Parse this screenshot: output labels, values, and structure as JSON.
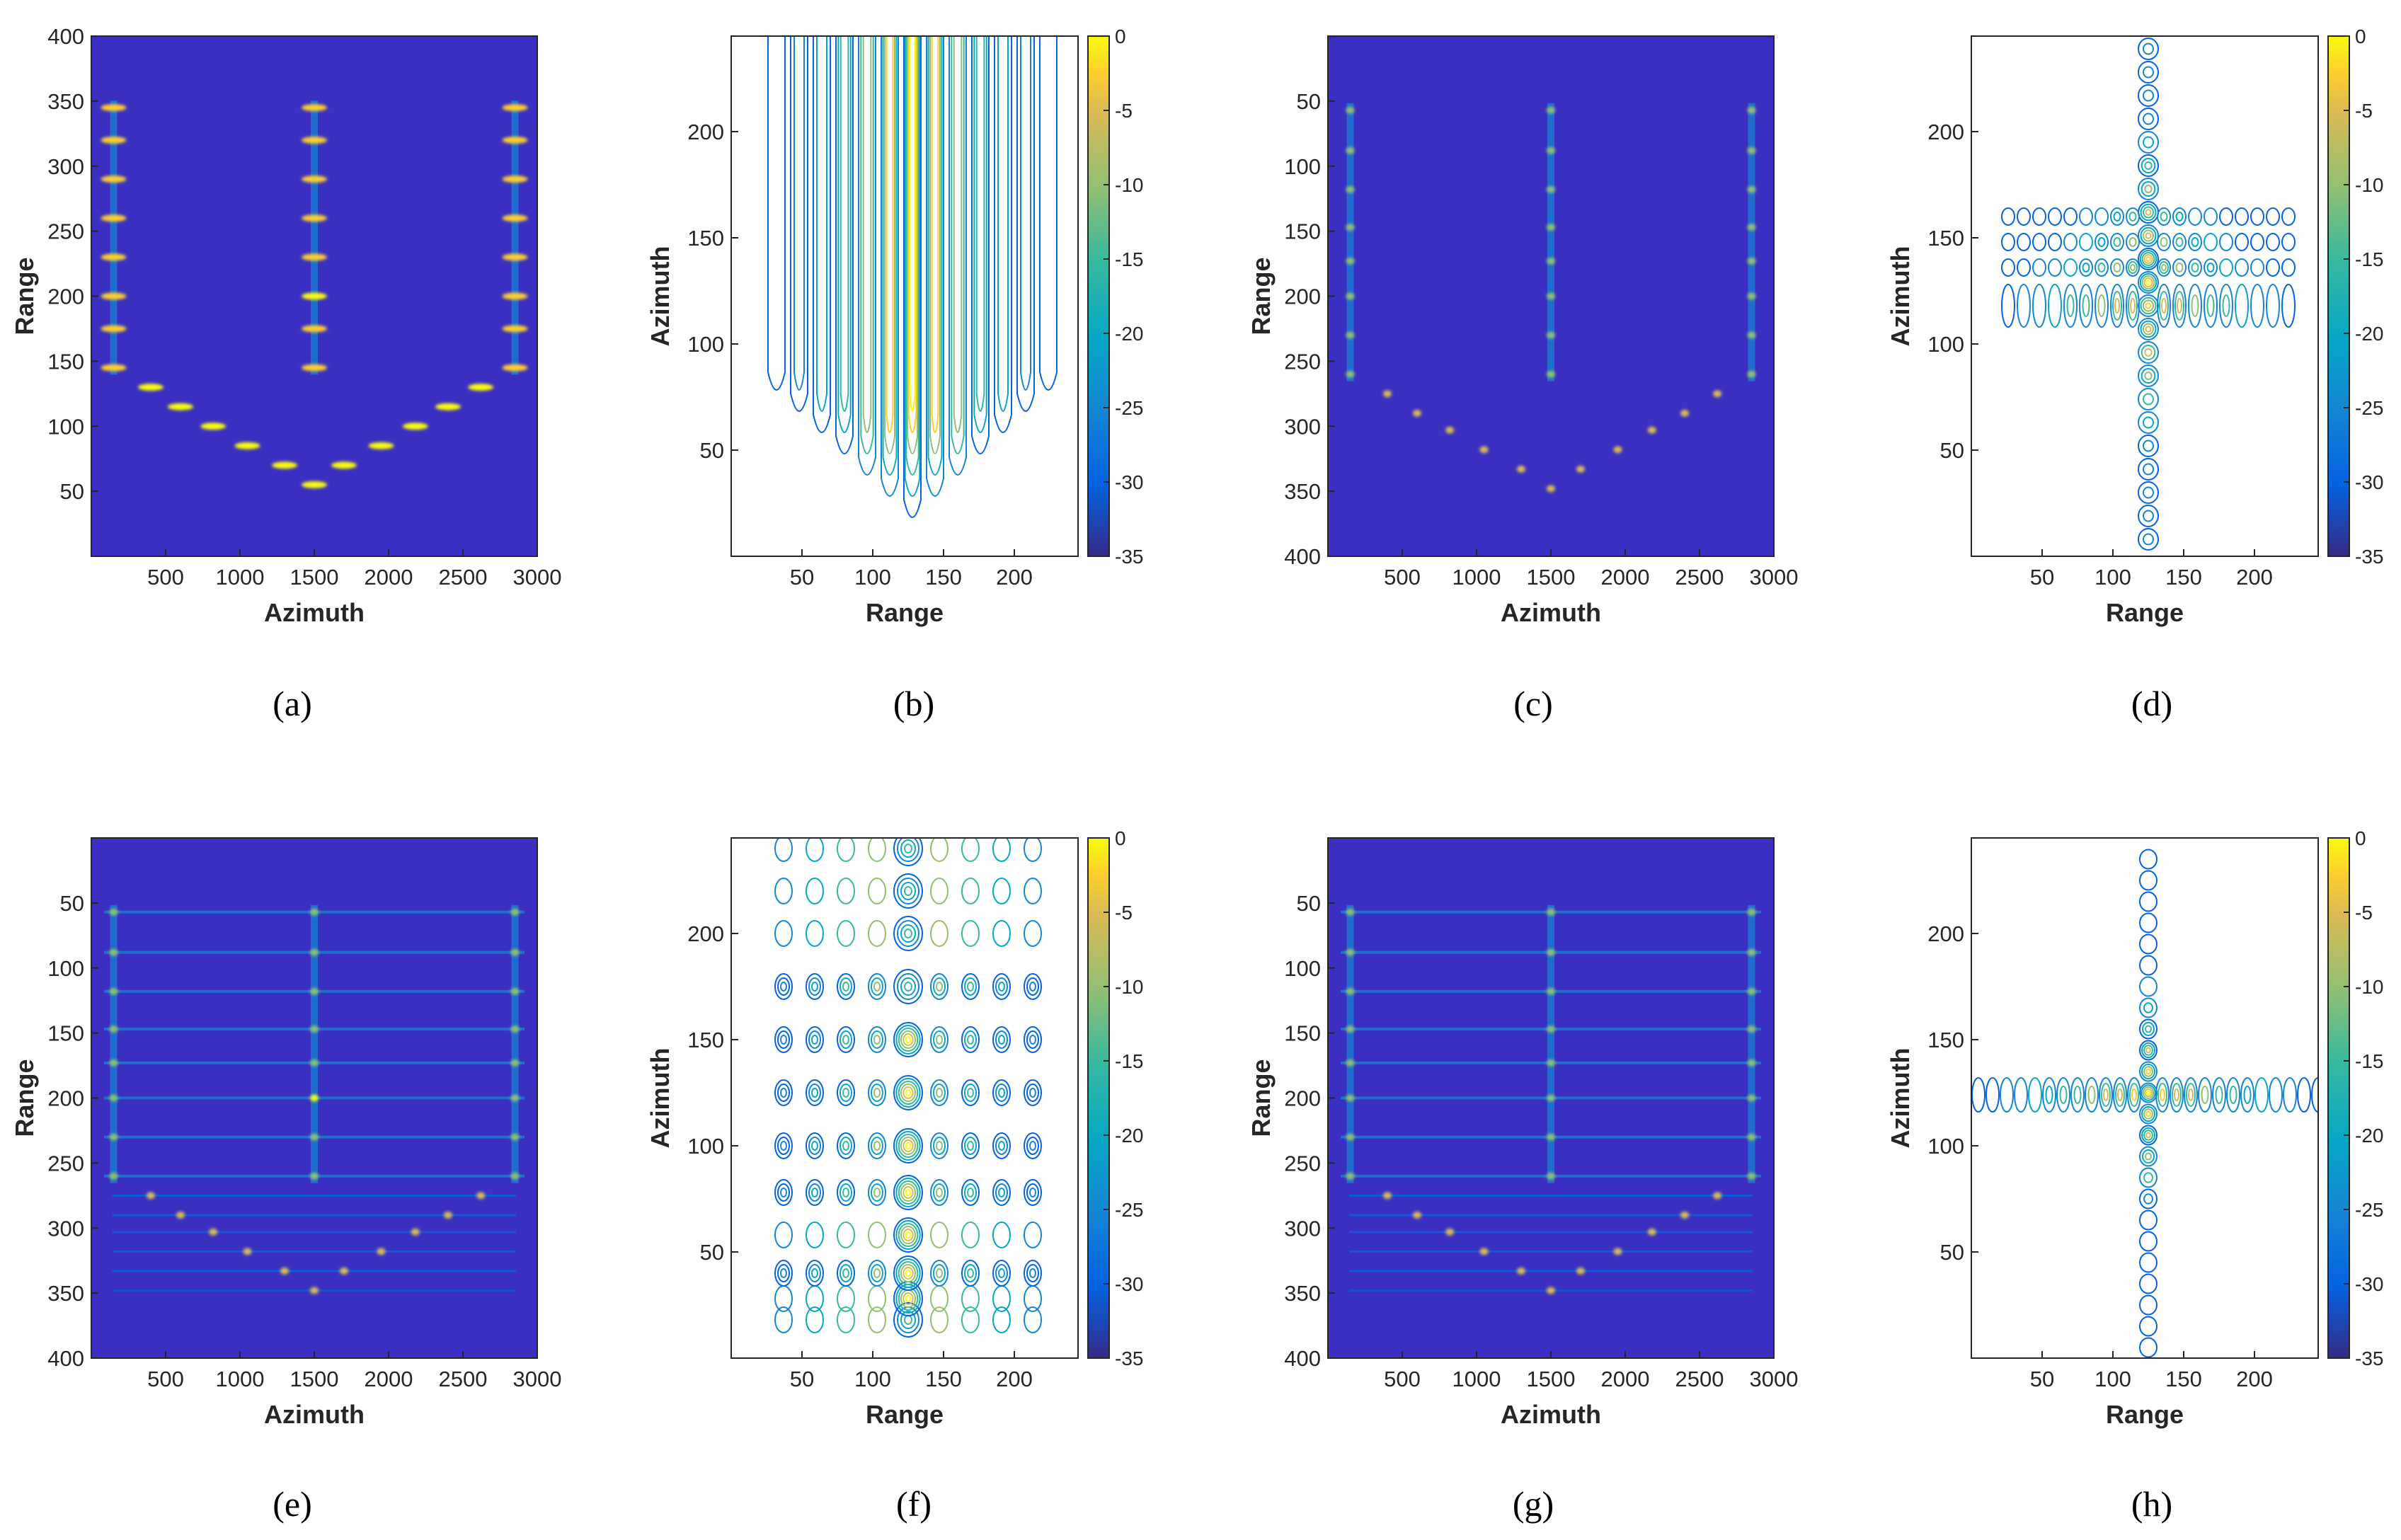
{
  "figure": {
    "caption_labels": [
      "(a)",
      "(b)",
      "(c)",
      "(d)",
      "(e)",
      "(f)",
      "(g)",
      "(h)"
    ]
  },
  "colors": {
    "background": "#3a2fc0",
    "parula": [
      "#352a87",
      "#0363e1",
      "#1485d4",
      "#06a7c6",
      "#38b99e",
      "#92bf73",
      "#d9ba56",
      "#fcce2e",
      "#f9fb0e"
    ]
  },
  "chart_data": [
    {
      "id": "a",
      "type": "heatmap",
      "caption": "(a)",
      "xlabel": "Azimuth",
      "ylabel": "Range",
      "xlim": [
        0,
        3000
      ],
      "ylim": [
        0,
        400
      ],
      "y_direction": "normal",
      "xticks": [
        500,
        1000,
        1500,
        2000,
        2500,
        3000
      ],
      "yticks": [
        50,
        100,
        150,
        200,
        250,
        300,
        350,
        400
      ],
      "vertical_tracks": [
        150,
        1500,
        2850
      ],
      "track_points_range": [
        145,
        175,
        200,
        230,
        260,
        290,
        320,
        345
      ],
      "curve_points": [
        [
          400,
          130
        ],
        [
          600,
          115
        ],
        [
          820,
          100
        ],
        [
          1050,
          85
        ],
        [
          1300,
          70
        ],
        [
          1500,
          55
        ],
        [
          1700,
          70
        ],
        [
          1950,
          85
        ],
        [
          2180,
          100
        ],
        [
          2400,
          115
        ],
        [
          2620,
          130
        ]
      ],
      "highlight_points": [
        [
          1500,
          200
        ]
      ],
      "background_rows": false
    },
    {
      "id": "b",
      "type": "contour",
      "caption": "(b)",
      "xlabel": "Range",
      "ylabel": "Azimuth",
      "xlim": [
        0,
        245
      ],
      "ylim": [
        0,
        245
      ],
      "xticks": [
        50,
        100,
        150,
        200
      ],
      "yticks": [
        50,
        100,
        150,
        200
      ],
      "colorbar": {
        "ticks": [
          0,
          -5,
          -10,
          -15,
          -20,
          -25,
          -30,
          -35
        ],
        "range": [
          -35,
          0
        ]
      },
      "mainlobe_x": 128,
      "pattern": "vertical_bands"
    },
    {
      "id": "c",
      "type": "heatmap",
      "caption": "(c)",
      "xlabel": "Azimuth",
      "ylabel": "Range",
      "xlim": [
        0,
        3000
      ],
      "ylim": [
        0,
        400
      ],
      "y_direction": "reverse",
      "xticks": [
        500,
        1000,
        1500,
        2000,
        2500,
        3000
      ],
      "yticks": [
        50,
        100,
        150,
        200,
        250,
        300,
        350,
        400
      ],
      "vertical_tracks": [
        150,
        1500,
        2850
      ],
      "track_points_range": [
        57,
        88,
        118,
        147,
        173,
        200,
        230,
        260
      ],
      "curve_points": [
        [
          400,
          275
        ],
        [
          600,
          290
        ],
        [
          820,
          303
        ],
        [
          1050,
          318
        ],
        [
          1300,
          333
        ],
        [
          1500,
          348
        ],
        [
          1700,
          333
        ],
        [
          1950,
          318
        ],
        [
          2180,
          303
        ],
        [
          2400,
          290
        ],
        [
          2620,
          275
        ]
      ],
      "highlight_points": [],
      "background_rows": false
    },
    {
      "id": "d",
      "type": "contour",
      "caption": "(d)",
      "xlabel": "Range",
      "ylabel": "Azimuth",
      "xlim": [
        0,
        245
      ],
      "ylim": [
        0,
        245
      ],
      "xticks": [
        50,
        100,
        150,
        200
      ],
      "yticks": [
        50,
        100,
        150,
        200
      ],
      "colorbar": {
        "ticks": [
          0,
          -5,
          -10,
          -15,
          -20,
          -25,
          -30,
          -35
        ],
        "range": [
          -35,
          0
        ]
      },
      "mainlobe_x": 125,
      "pattern": "cross_upper"
    },
    {
      "id": "e",
      "type": "heatmap",
      "caption": "(e)",
      "xlabel": "Azimuth",
      "ylabel": "Range",
      "xlim": [
        0,
        3000
      ],
      "ylim": [
        0,
        400
      ],
      "y_direction": "reverse",
      "xticks": [
        500,
        1000,
        1500,
        2000,
        2500,
        3000
      ],
      "yticks": [
        50,
        100,
        150,
        200,
        250,
        300,
        350,
        400
      ],
      "vertical_tracks": [
        150,
        1500,
        2850
      ],
      "track_points_range": [
        57,
        88,
        118,
        147,
        173,
        200,
        230,
        260
      ],
      "curve_points": [
        [
          400,
          275
        ],
        [
          600,
          290
        ],
        [
          820,
          303
        ],
        [
          1050,
          318
        ],
        [
          1300,
          333
        ],
        [
          1500,
          348
        ],
        [
          1700,
          333
        ],
        [
          1950,
          318
        ],
        [
          2180,
          303
        ],
        [
          2400,
          290
        ],
        [
          2620,
          275
        ]
      ],
      "highlight_points": [
        [
          1500,
          200
        ]
      ],
      "background_rows": true
    },
    {
      "id": "f",
      "type": "contour",
      "caption": "(f)",
      "xlabel": "Range",
      "ylabel": "Azimuth",
      "xlim": [
        0,
        245
      ],
      "ylim": [
        0,
        245
      ],
      "xticks": [
        50,
        100,
        150,
        200
      ],
      "yticks": [
        50,
        100,
        150,
        200
      ],
      "colorbar": {
        "ticks": [
          0,
          -5,
          -10,
          -15,
          -20,
          -25,
          -30,
          -35
        ],
        "range": [
          -35,
          0
        ]
      },
      "mainlobe_x": 125,
      "pattern": "grid_lobes"
    },
    {
      "id": "g",
      "type": "heatmap",
      "caption": "(g)",
      "xlabel": "Azimuth",
      "ylabel": "Range",
      "xlim": [
        0,
        3000
      ],
      "ylim": [
        0,
        400
      ],
      "y_direction": "reverse",
      "xticks": [
        500,
        1000,
        1500,
        2000,
        2500,
        3000
      ],
      "yticks": [
        50,
        100,
        150,
        200,
        250,
        300,
        350,
        400
      ],
      "vertical_tracks": [
        150,
        1500,
        2850
      ],
      "track_points_range": [
        57,
        88,
        118,
        147,
        173,
        200,
        230,
        260
      ],
      "curve_points": [
        [
          400,
          275
        ],
        [
          600,
          290
        ],
        [
          820,
          303
        ],
        [
          1050,
          318
        ],
        [
          1300,
          333
        ],
        [
          1500,
          348
        ],
        [
          1700,
          333
        ],
        [
          1950,
          318
        ],
        [
          2180,
          303
        ],
        [
          2400,
          290
        ],
        [
          2620,
          275
        ]
      ],
      "highlight_points": [],
      "background_rows": true
    },
    {
      "id": "h",
      "type": "contour",
      "caption": "(h)",
      "xlabel": "Range",
      "ylabel": "Azimuth",
      "xlim": [
        0,
        245
      ],
      "ylim": [
        0,
        245
      ],
      "xticks": [
        50,
        100,
        150,
        200
      ],
      "yticks": [
        50,
        100,
        150,
        200
      ],
      "colorbar": {
        "ticks": [
          0,
          -5,
          -10,
          -15,
          -20,
          -25,
          -30,
          -35
        ],
        "range": [
          -35,
          0
        ]
      },
      "mainlobe_x": 125,
      "pattern": "cross_center"
    }
  ]
}
